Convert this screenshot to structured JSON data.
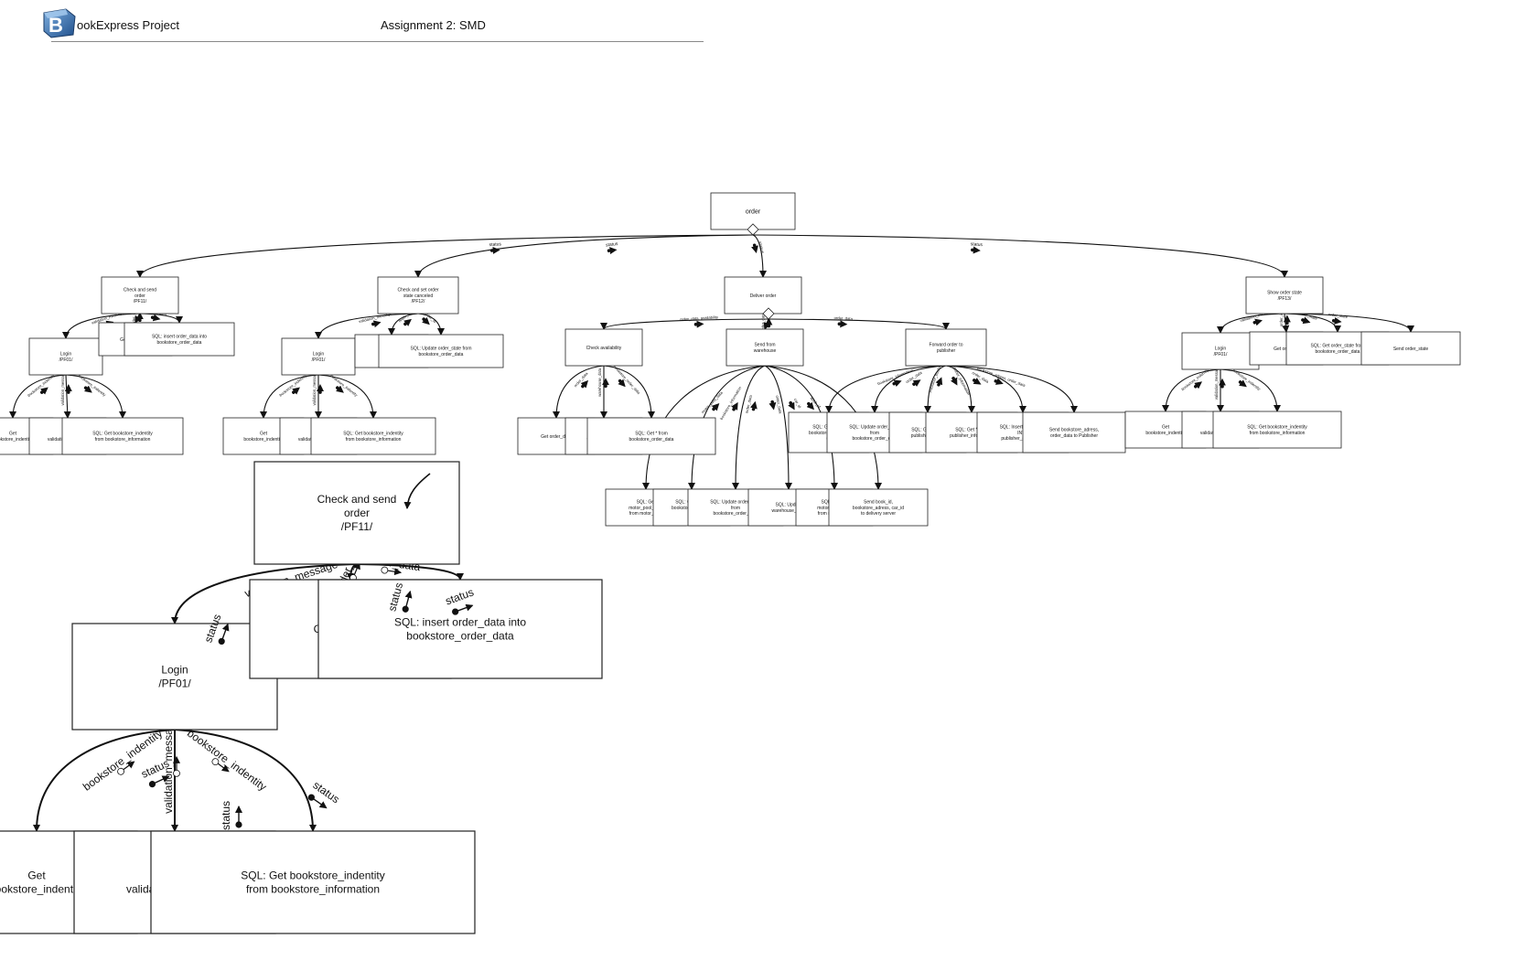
{
  "header": {
    "logo_letter": "B",
    "project_title": "ookExpress Project",
    "assignment": "Assignment 2: SMD"
  },
  "nodes": [
    {
      "id": "order",
      "lines": [
        "order"
      ]
    },
    {
      "id": "check_send",
      "lines": [
        "Check and send",
        "order",
        "/PF11/"
      ]
    },
    {
      "id": "check_cancel",
      "lines": [
        "Check and set order",
        "state canceled",
        "/PF12/"
      ]
    },
    {
      "id": "deliver",
      "lines": [
        "Deliver order"
      ]
    },
    {
      "id": "show_state",
      "lines": [
        "Show order state",
        "/PF13/"
      ]
    },
    {
      "id": "login1",
      "lines": [
        "Login",
        "/PF01/"
      ]
    },
    {
      "id": "get_order_data1",
      "lines": [
        "Get order_data"
      ]
    },
    {
      "id": "sql_insert1",
      "lines": [
        "SQL: insert order_data into",
        "bookstore_order_data"
      ]
    },
    {
      "id": "get_ident1",
      "lines": [
        "Get",
        "bookstore_indentity"
      ]
    },
    {
      "id": "send_valid1",
      "lines": [
        "Send",
        "validation_message"
      ]
    },
    {
      "id": "sql_get_ident1",
      "lines": [
        "SQL: Get bookstore_indentity",
        "from bookstore_information"
      ]
    },
    {
      "id": "login2",
      "lines": [
        "Login",
        "/PF01/"
      ]
    },
    {
      "id": "get_order_id2",
      "lines": [
        "Get order_id"
      ]
    },
    {
      "id": "sql_update2",
      "lines": [
        "SQL: Update order_state from",
        "bookstore_order_data"
      ]
    },
    {
      "id": "get_ident2",
      "lines": [
        "Get",
        "bookstore_indentity"
      ]
    },
    {
      "id": "send_valid2",
      "lines": [
        "Send",
        "validation_message"
      ]
    },
    {
      "id": "sql_get_ident2",
      "lines": [
        "SQL: Get bookstore_indentity",
        "from bookstore_information"
      ]
    },
    {
      "id": "check_avail",
      "lines": [
        "Check availability"
      ]
    },
    {
      "id": "send_wh",
      "lines": [
        "Send from",
        "warehouse"
      ]
    },
    {
      "id": "forward_pub",
      "lines": [
        "Forward order to",
        "publisher"
      ]
    },
    {
      "id": "ca_get_order",
      "lines": [
        "Get order_data"
      ]
    },
    {
      "id": "ca_get_wh",
      "lines": [
        "Get * from",
        "warehouse_data"
      ]
    },
    {
      "id": "ca_sql_get",
      "lines": [
        "SQL: Get * from",
        "bookstore_order_data"
      ]
    },
    {
      "id": "sw_sql_get_motor",
      "lines": [
        "SQL: Get",
        "motor_pool_data",
        "from motor_pool"
      ]
    },
    {
      "id": "sw_sql_get_info",
      "lines": [
        "SQL: Get * from",
        "bookstore_informati",
        "on"
      ]
    },
    {
      "id": "sw_sql_update_state",
      "lines": [
        "SQL: Update order_state",
        "from",
        "bookstore_order_data"
      ]
    },
    {
      "id": "sw_sql_update_wh",
      "lines": [
        "SQL: Update",
        "warehouse_data"
      ]
    },
    {
      "id": "sw_sql_update_motor",
      "lines": [
        "SQL: Update",
        "motor_pool_data",
        "from motor_pool"
      ]
    },
    {
      "id": "sw_send_book",
      "lines": [
        "Send book_id,",
        "bookstore_adress, car_id",
        "to delivery server"
      ]
    },
    {
      "id": "fp_sql_get_info",
      "lines": [
        "SQL: Get * from",
        "bookstore_informati",
        "on"
      ]
    },
    {
      "id": "fp_sql_update_state",
      "lines": [
        "SQL: Update order_state",
        "from",
        "bookstore_order_data"
      ]
    },
    {
      "id": "fp_sql_get_books",
      "lines": [
        "SQL: Get * from",
        "publisher_books"
      ]
    },
    {
      "id": "fp_sql_get_pubinfo",
      "lines": [
        "SQL: Get * from",
        "publisher_information"
      ]
    },
    {
      "id": "fp_sql_insert",
      "lines": [
        "SQL: Insert order_data",
        "INTO",
        "publisher_order_data"
      ]
    },
    {
      "id": "fp_send_pub",
      "lines": [
        "Send bookstore_adress,",
        "order_data to Publisher"
      ]
    },
    {
      "id": "login3",
      "lines": [
        "Login",
        "/PF01/"
      ]
    },
    {
      "id": "ss_get_order_id",
      "lines": [
        "Get order_id"
      ]
    },
    {
      "id": "ss_sql_get_state",
      "lines": [
        "SQL: Get order_state from",
        "bookstore_order_data"
      ]
    },
    {
      "id": "ss_send_state",
      "lines": [
        "Send order_state"
      ]
    },
    {
      "id": "get_ident3",
      "lines": [
        "Get",
        "bookstore_indentity"
      ]
    },
    {
      "id": "send_valid3",
      "lines": [
        "Send",
        "validation_message"
      ]
    },
    {
      "id": "sql_get_ident3",
      "lines": [
        "SQL: Get bookstore_indentity",
        "from bookstore_information"
      ]
    },
    {
      "id": "z_check_send",
      "lines": [
        "Check and send",
        "order",
        "/PF11/"
      ]
    },
    {
      "id": "z_login",
      "lines": [
        "Login",
        "/PF01/"
      ]
    },
    {
      "id": "z_get_order",
      "lines": [
        "Get order_data"
      ]
    },
    {
      "id": "z_sql_insert",
      "lines": [
        "SQL: insert order_data into",
        "bookstore_order_data"
      ]
    },
    {
      "id": "z_get_ident",
      "lines": [
        "Get",
        "bookstore_indentity"
      ]
    },
    {
      "id": "z_send_valid",
      "lines": [
        "Send",
        "validation_message"
      ]
    },
    {
      "id": "z_sql_get_ident",
      "lines": [
        "SQL: Get bookstore_indentity",
        "from bookstore_information"
      ]
    }
  ],
  "edges": [
    {
      "from": "order",
      "to": "check_send",
      "label": "status"
    },
    {
      "from": "order",
      "to": "check_cancel",
      "label": "status"
    },
    {
      "from": "order",
      "to": "deliver",
      "label": "status"
    },
    {
      "from": "order",
      "to": "show_state",
      "label": "status"
    },
    {
      "from": "check_send",
      "to": "login1",
      "label": "validation_message"
    },
    {
      "from": "check_send",
      "to": "get_order_data1",
      "label": "order_data"
    },
    {
      "from": "check_send",
      "to": "sql_insert1",
      "label": "order_data"
    },
    {
      "from": "login1",
      "to": "get_ident1",
      "label": "bookstore_indentity"
    },
    {
      "from": "login1",
      "to": "send_valid1",
      "label": "validation_message"
    },
    {
      "from": "login1",
      "to": "sql_get_ident1",
      "label": "bookstore_indentity"
    },
    {
      "from": "check_cancel",
      "to": "login2",
      "label": "validation_message"
    },
    {
      "from": "check_cancel",
      "to": "get_order_id2",
      "label": "order_id"
    },
    {
      "from": "check_cancel",
      "to": "sql_update2",
      "label": "order_id"
    },
    {
      "from": "login2",
      "to": "get_ident2",
      "label": "bookstore_indentity"
    },
    {
      "from": "login2",
      "to": "send_valid2",
      "label": "validation_message"
    },
    {
      "from": "login2",
      "to": "sql_get_ident2",
      "label": "bookstore_indentity"
    },
    {
      "from": "deliver",
      "to": "check_avail",
      "label": "order_data, availability"
    },
    {
      "from": "deliver",
      "to": "send_wh",
      "label": "order_data"
    },
    {
      "from": "deliver",
      "to": "forward_pub",
      "label": "order_data"
    },
    {
      "from": "check_avail",
      "to": "ca_get_order",
      "label": "order_data"
    },
    {
      "from": "check_avail",
      "to": "ca_get_wh",
      "label": "warehouse_data"
    },
    {
      "from": "check_avail",
      "to": "ca_sql_get",
      "label": "bookstore_order_data"
    },
    {
      "from": "send_wh",
      "to": "sw_sql_get_motor",
      "label": "motor_pool_data"
    },
    {
      "from": "send_wh",
      "to": "sw_sql_get_info",
      "label": "bookstore_information"
    },
    {
      "from": "send_wh",
      "to": "sw_sql_update_state",
      "label": "order_data"
    },
    {
      "from": "send_wh",
      "to": "sw_sql_update_wh",
      "label": "order_data"
    },
    {
      "from": "send_wh",
      "to": "sw_sql_update_motor",
      "label": "car_id"
    },
    {
      "from": "send_wh",
      "to": "sw_send_book",
      "label": "book_id"
    },
    {
      "from": "forward_pub",
      "to": "fp_sql_get_info",
      "label": "bookstore_information"
    },
    {
      "from": "forward_pub",
      "to": "fp_sql_update_state",
      "label": "order_data"
    },
    {
      "from": "forward_pub",
      "to": "fp_sql_get_books",
      "label": "publisher_books"
    },
    {
      "from": "forward_pub",
      "to": "fp_sql_get_pubinfo",
      "label": "publisher_information"
    },
    {
      "from": "forward_pub",
      "to": "fp_sql_insert",
      "label": "order_data"
    },
    {
      "from": "forward_pub",
      "to": "fp_send_pub",
      "label": "bookstore_adress, order_data"
    },
    {
      "from": "show_state",
      "to": "login3",
      "label": "validation_message"
    },
    {
      "from": "show_state",
      "to": "ss_get_order_id",
      "label": "order_id"
    },
    {
      "from": "show_state",
      "to": "ss_sql_get_state",
      "label": "order_state"
    },
    {
      "from": "show_state",
      "to": "ss_send_state",
      "label": "order_state"
    },
    {
      "from": "login3",
      "to": "get_ident3",
      "label": "bookstore_indentity"
    },
    {
      "from": "login3",
      "to": "send_valid3",
      "label": "validation_message"
    },
    {
      "from": "login3",
      "to": "sql_get_ident3",
      "label": "bookstore_indentity"
    },
    {
      "from": "z_check_send",
      "to": "z_login",
      "label": "validation_message"
    },
    {
      "from": "z_check_send",
      "to": "z_get_order",
      "label": "order_data"
    },
    {
      "from": "z_check_send",
      "to": "z_sql_insert",
      "label": "order_data"
    },
    {
      "from": "z_login",
      "to": "z_get_ident",
      "label": "bookstore_indentity"
    },
    {
      "from": "z_login",
      "to": "z_send_valid",
      "label": "validation_message"
    },
    {
      "from": "z_login",
      "to": "z_sql_get_ident",
      "label": "bookstore_indentity"
    }
  ],
  "zoom_labels": {
    "validation_message": "validation_message",
    "status": "status",
    "order_data": "order_data",
    "bookstore_indentity": "bookstore_indentity"
  }
}
